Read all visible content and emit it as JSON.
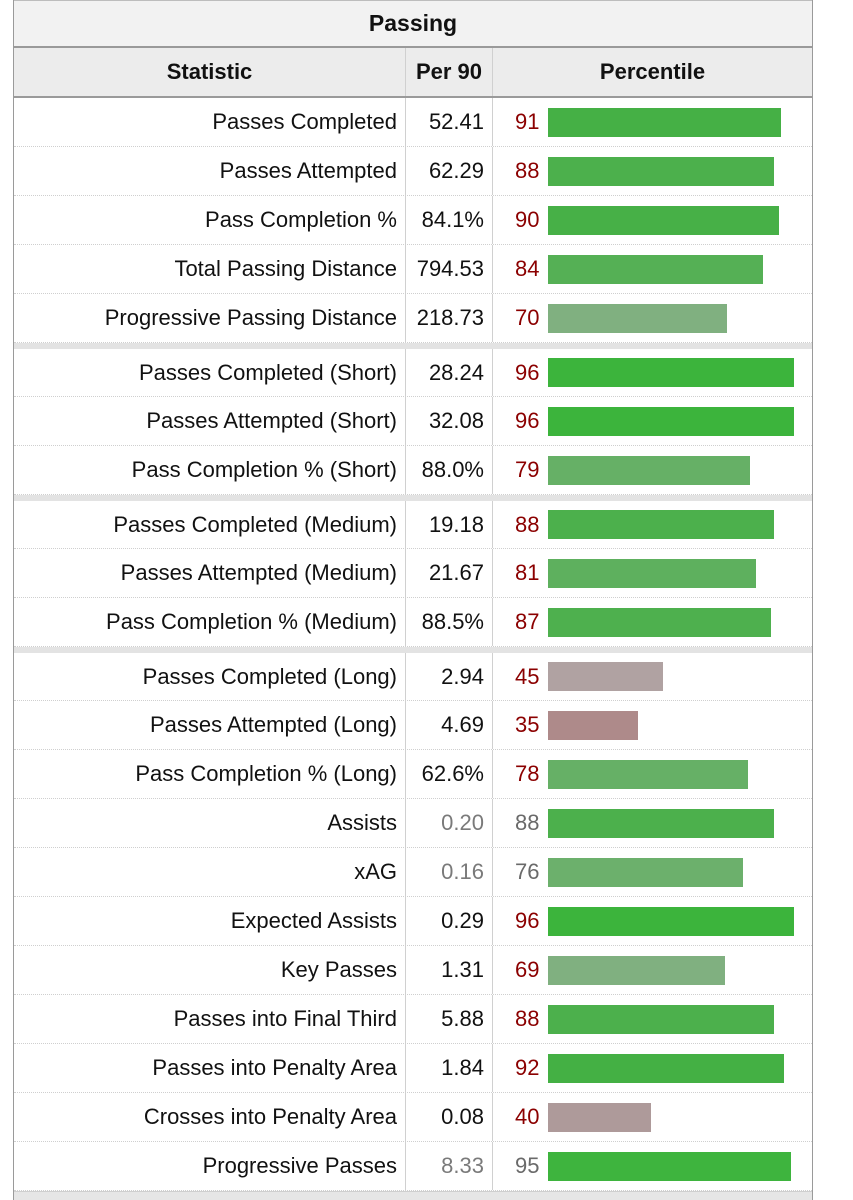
{
  "caption": "Passing",
  "headers": {
    "stat": "Statistic",
    "per90": "Per 90",
    "pct": "Percentile"
  },
  "rows": [
    {
      "stat": "Passes Completed",
      "per90": "52.41",
      "pct": 91,
      "group_start": false,
      "dim": false,
      "bar_color": "#45b045"
    },
    {
      "stat": "Passes Attempted",
      "per90": "62.29",
      "pct": 88,
      "group_start": false,
      "dim": false,
      "bar_color": "#4cb04c"
    },
    {
      "stat": "Pass Completion %",
      "per90": "84.1%",
      "pct": 90,
      "group_start": false,
      "dim": false,
      "bar_color": "#47b047"
    },
    {
      "stat": "Total Passing Distance",
      "per90": "794.53",
      "pct": 84,
      "group_start": false,
      "dim": false,
      "bar_color": "#55b055"
    },
    {
      "stat": "Progressive Passing Distance",
      "per90": "218.73",
      "pct": 70,
      "group_start": false,
      "dim": false,
      "bar_color": "#80b080"
    },
    {
      "stat": "Passes Completed (Short)",
      "per90": "28.24",
      "pct": 96,
      "group_start": true,
      "dim": false,
      "bar_color": "#3cb43c"
    },
    {
      "stat": "Passes Attempted (Short)",
      "per90": "32.08",
      "pct": 96,
      "group_start": false,
      "dim": false,
      "bar_color": "#3cb43c"
    },
    {
      "stat": "Pass Completion % (Short)",
      "per90": "88.0%",
      "pct": 79,
      "group_start": false,
      "dim": false,
      "bar_color": "#66b066"
    },
    {
      "stat": "Passes Completed (Medium)",
      "per90": "19.18",
      "pct": 88,
      "group_start": true,
      "dim": false,
      "bar_color": "#4cb04c"
    },
    {
      "stat": "Passes Attempted (Medium)",
      "per90": "21.67",
      "pct": 81,
      "group_start": false,
      "dim": false,
      "bar_color": "#5eb05e"
    },
    {
      "stat": "Pass Completion % (Medium)",
      "per90": "88.5%",
      "pct": 87,
      "group_start": false,
      "dim": false,
      "bar_color": "#4eb04e"
    },
    {
      "stat": "Passes Completed (Long)",
      "per90": "2.94",
      "pct": 45,
      "group_start": true,
      "dim": false,
      "bar_color": "#b0a2a2"
    },
    {
      "stat": "Passes Attempted (Long)",
      "per90": "4.69",
      "pct": 35,
      "group_start": false,
      "dim": false,
      "bar_color": "#ae8a8a"
    },
    {
      "stat": "Pass Completion % (Long)",
      "per90": "62.6%",
      "pct": 78,
      "group_start": false,
      "dim": false,
      "bar_color": "#66b066"
    },
    {
      "stat": "Assists",
      "per90": "0.20",
      "pct": 88,
      "group_start": false,
      "dim": true,
      "bar_color": "#4cb04c"
    },
    {
      "stat": "xAG",
      "per90": "0.16",
      "pct": 76,
      "group_start": false,
      "dim": true,
      "bar_color": "#6cb06c"
    },
    {
      "stat": "Expected Assists",
      "per90": "0.29",
      "pct": 96,
      "group_start": false,
      "dim": false,
      "bar_color": "#3cb43c"
    },
    {
      "stat": "Key Passes",
      "per90": "1.31",
      "pct": 69,
      "group_start": false,
      "dim": false,
      "bar_color": "#80b080"
    },
    {
      "stat": "Passes into Final Third",
      "per90": "5.88",
      "pct": 88,
      "group_start": false,
      "dim": false,
      "bar_color": "#4cb04c"
    },
    {
      "stat": "Passes into Penalty Area",
      "per90": "1.84",
      "pct": 92,
      "group_start": false,
      "dim": false,
      "bar_color": "#44b044"
    },
    {
      "stat": "Crosses into Penalty Area",
      "per90": "0.08",
      "pct": 40,
      "group_start": false,
      "dim": false,
      "bar_color": "#ae9a9a"
    },
    {
      "stat": "Progressive Passes",
      "per90": "8.33",
      "pct": 95,
      "group_start": false,
      "dim": true,
      "bar_color": "#3eb43e"
    }
  ]
}
